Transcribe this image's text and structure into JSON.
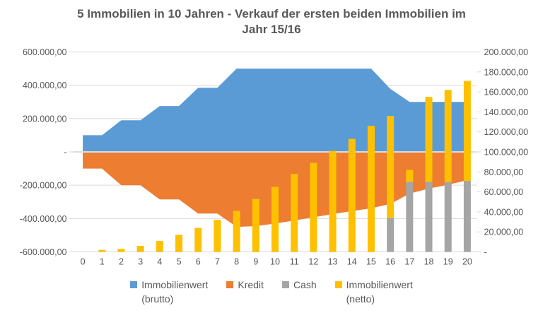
{
  "title": {
    "full": "5 Immobilien in 10 Jahren - Verkauf der ersten beiden Immobilien im Jahr 15/16",
    "line1": "5 Immobilien in 10 Jahren - Verkauf der ersten beiden Immobilien im",
    "line2": "Jahr 15/16"
  },
  "colors": {
    "area_brutto": "#5B9BD5",
    "area_kredit": "#ED7D31",
    "bar_cash": "#A5A5A5",
    "bar_netto": "#FFC000",
    "text": "#595959",
    "gridline": "#D9D9D9",
    "zero_line": "#DCDCDC",
    "background": "#FFFFFF"
  },
  "legend": {
    "position": "bottom",
    "items": [
      {
        "id": "immobilienwert-brutto",
        "line1": "Immobilienwert",
        "line2": "(brutto)",
        "color": "#5B9BD5"
      },
      {
        "id": "kredit",
        "line1": "Kredit",
        "line2": "",
        "color": "#ED7D31"
      },
      {
        "id": "cash",
        "line1": "Cash",
        "line2": "",
        "color": "#A5A5A5"
      },
      {
        "id": "immobilienwert-netto",
        "line1": "Immobilienwert",
        "line2": "(netto)",
        "color": "#FFC000"
      }
    ]
  },
  "chart_data": {
    "type": "combo-area-and-stacked-column",
    "title": "5 Immobilien in 10 Jahren - Verkauf der ersten beiden Immobilien im Jahr 15/16",
    "categories": [
      "0",
      "1",
      "2",
      "3",
      "4",
      "5",
      "6",
      "7",
      "8",
      "9",
      "10",
      "11",
      "12",
      "13",
      "14",
      "15",
      "16",
      "17",
      "18",
      "19",
      "20"
    ],
    "xlabel": "",
    "ylabel": "",
    "grid": {
      "horizontal": true,
      "vertical": false
    },
    "legend_position": "bottom",
    "left_axis": {
      "min": -600000,
      "max": 600000,
      "tick_interval": 200000,
      "tick_values": [
        600000,
        400000,
        200000,
        0,
        -200000,
        -400000,
        -600000
      ],
      "tick_labels": [
        "600.000,00",
        "400.000,00",
        "200.000,00",
        "-",
        "-200.000,00",
        "-400.000,00",
        "-600.000,00"
      ]
    },
    "right_axis": {
      "min": 0,
      "max": 200000,
      "tick_interval": 20000,
      "tick_values": [
        200000,
        180000,
        160000,
        140000,
        120000,
        100000,
        80000,
        60000,
        40000,
        20000,
        0
      ],
      "tick_labels": [
        "200.000,00",
        "180.000,00",
        "160.000,00",
        "140.000,00",
        "120.000,00",
        "100.000,00",
        "80.000,00",
        "60.000,00",
        "40.000,00",
        "20.000,00",
        "-"
      ]
    },
    "series": [
      {
        "name": "Immobilienwert (brutto)",
        "chart_type": "area",
        "axis": "left",
        "color": "#5B9BD5",
        "values": [
          100000,
          100000,
          190000,
          190000,
          275000,
          275000,
          385000,
          385000,
          500000,
          500000,
          500000,
          500000,
          500000,
          500000,
          500000,
          500000,
          378000,
          300000,
          300000,
          300000,
          300000
        ]
      },
      {
        "name": "Kredit",
        "chart_type": "area",
        "axis": "left",
        "color": "#ED7D31",
        "values": [
          -100000,
          -100000,
          -200000,
          -200000,
          -285000,
          -285000,
          -370000,
          -370000,
          -450000,
          -445000,
          -430000,
          -412000,
          -392000,
          -373000,
          -355000,
          -338000,
          -312000,
          -250000,
          -220000,
          -197000,
          -170000
        ]
      },
      {
        "name": "Cash",
        "chart_type": "column",
        "axis": "right",
        "color": "#A5A5A5",
        "values": [
          0,
          0,
          0,
          0,
          0,
          0,
          0,
          0,
          0,
          0,
          0,
          0,
          0,
          0,
          0,
          0,
          34000,
          70000,
          70000,
          70000,
          71000
        ]
      },
      {
        "name": "Immobilienwert (netto)",
        "chart_type": "column",
        "axis": "right",
        "color": "#FFC000",
        "note": "values are the bar top positions; yellow segment is drawn stacked from the Cash value up to this top",
        "values": [
          0,
          2000,
          3000,
          6000,
          11000,
          17000,
          24000,
          32000,
          41000,
          53000,
          65000,
          78000,
          89000,
          101000,
          113000,
          126000,
          136000,
          82000,
          155000,
          162000,
          171000
        ]
      }
    ]
  }
}
